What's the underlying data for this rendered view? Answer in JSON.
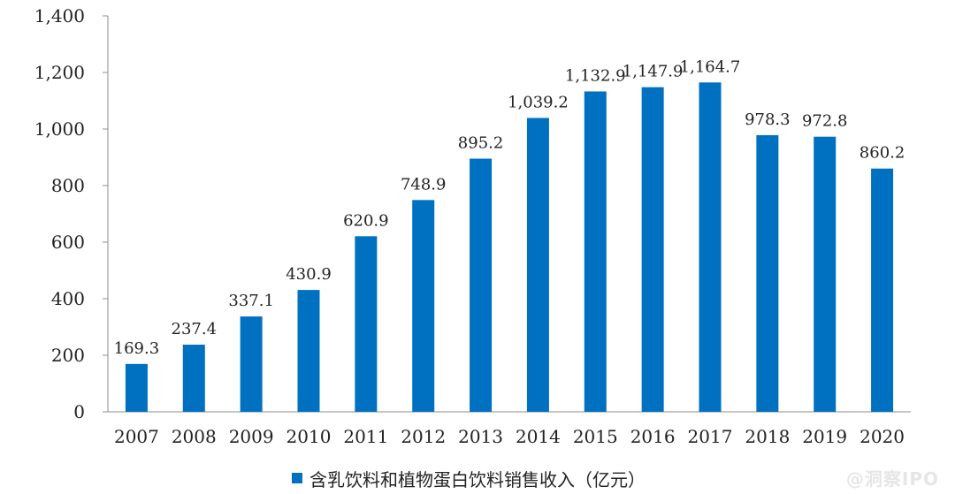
{
  "chart_data": {
    "type": "bar",
    "categories": [
      "2007",
      "2008",
      "2009",
      "2010",
      "2011",
      "2012",
      "2013",
      "2014",
      "2015",
      "2016",
      "2017",
      "2018",
      "2019",
      "2020"
    ],
    "series": [
      {
        "name": "含乳饮料和植物蛋白饮料销售收入（亿元）",
        "values": [
          169.3,
          237.4,
          337.1,
          430.9,
          620.9,
          748.9,
          895.2,
          1039.2,
          1132.9,
          1147.9,
          1164.7,
          978.3,
          972.8,
          860.2
        ],
        "labels": [
          "169.3",
          "237.4",
          "337.1",
          "430.9",
          "620.9",
          "748.9",
          "895.2",
          "1,039.2",
          "1,132.9",
          "1,147.9",
          "1,164.7",
          "978.3",
          "972.8",
          "860.2"
        ]
      }
    ],
    "ylim": [
      0,
      1400
    ],
    "yticks": [
      0,
      200,
      400,
      600,
      800,
      1000,
      1200,
      1400
    ],
    "ytick_labels": [
      "0",
      "200",
      "400",
      "600",
      "800",
      "1,000",
      "1,200",
      "1,400"
    ],
    "grid": false,
    "legend_position": "bottom",
    "bar_color": "#0070C0"
  },
  "legend": {
    "label": "含乳饮料和植物蛋白饮料销售收入（亿元）"
  },
  "watermark": "@洞察IPO"
}
